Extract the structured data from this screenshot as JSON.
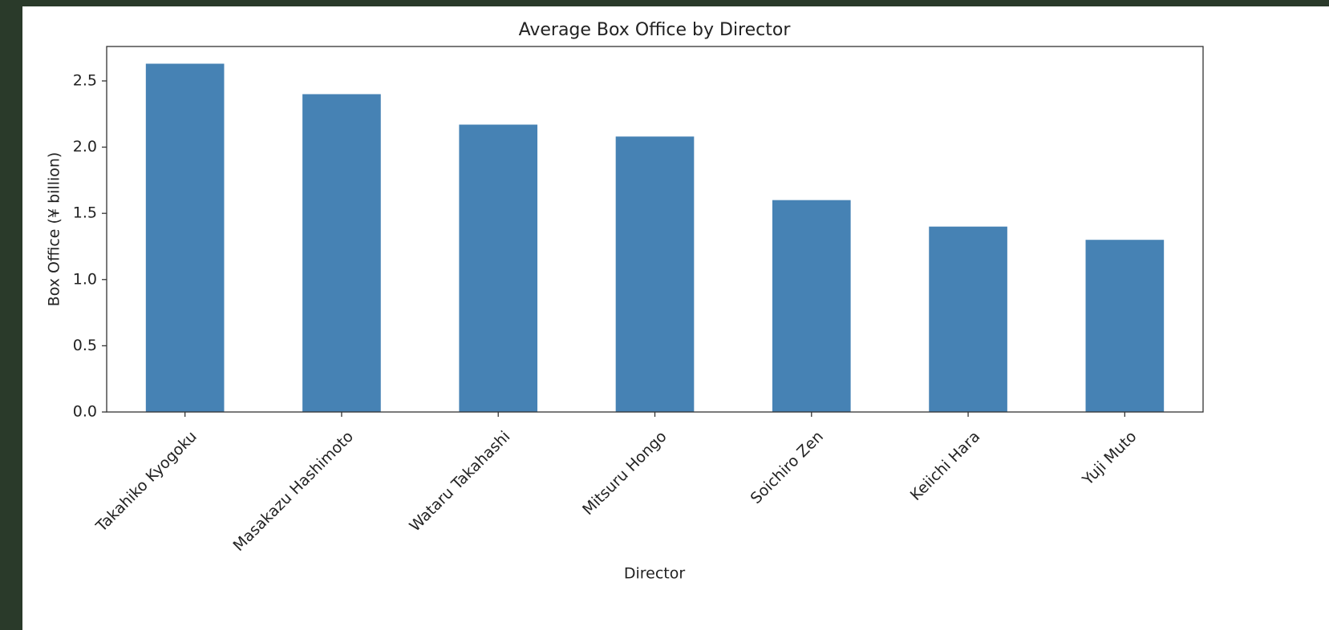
{
  "chart_data": {
    "type": "bar",
    "title": "Average Box Office by Director",
    "x_label": "Director",
    "y_label": "Box Office (¥ billion)",
    "categories": [
      "Takahiko Kyogoku",
      "Masakazu Hashimoto",
      "Wataru Takahashi",
      "Mitsuru Hongo",
      "Soichiro Zen",
      "Keiichi Hara",
      "Yuji Muto"
    ],
    "values": [
      2.63,
      2.4,
      2.17,
      2.08,
      1.6,
      1.4,
      1.3
    ],
    "color": "#4682b4",
    "ylim": [
      0,
      2.76
    ],
    "yticks": [
      {
        "value": 0,
        "label": "0.0"
      },
      0.5,
      {
        "value": 1,
        "label": "1.0"
      },
      1.5,
      {
        "value": 2,
        "label": "2.0"
      },
      2.5
    ]
  }
}
